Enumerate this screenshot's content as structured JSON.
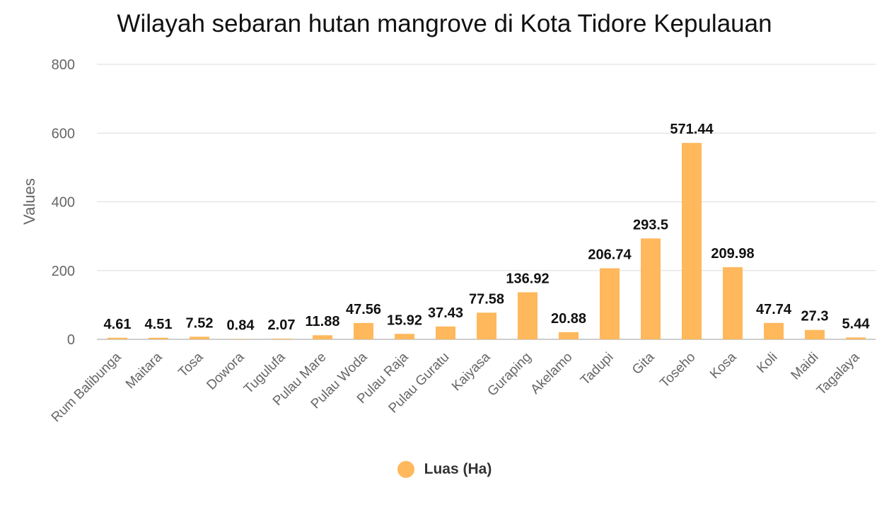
{
  "chart_data": {
    "type": "bar",
    "title": "Wilayah sebaran hutan mangrove di Kota Tidore Kepulauan",
    "xlabel": "",
    "ylabel": "Values",
    "ylim": [
      0,
      800
    ],
    "yticks": [
      0,
      200,
      400,
      600,
      800
    ],
    "grid": true,
    "legend_position": "bottom",
    "categories": [
      "Rum Balibunga",
      "Maitara",
      "Tosa",
      "Dowora",
      "Tugulufa",
      "Pulau Mare",
      "Pulau Woda",
      "Pulau Raja",
      "Pulau Guratu",
      "Kaiyasa",
      "Guraping",
      "Akelamo",
      "Tadupi",
      "Gita",
      "Toseho",
      "Kosa",
      "Koli",
      "Maidi",
      "Tagalaya"
    ],
    "series": [
      {
        "name": "Luas (Ha)",
        "color": "#ffb85c",
        "values": [
          4.61,
          4.51,
          7.52,
          0.84,
          2.07,
          11.88,
          47.56,
          15.92,
          37.43,
          77.58,
          136.92,
          20.88,
          206.74,
          293.5,
          571.44,
          209.98,
          47.74,
          27.3,
          5.44
        ]
      }
    ]
  }
}
